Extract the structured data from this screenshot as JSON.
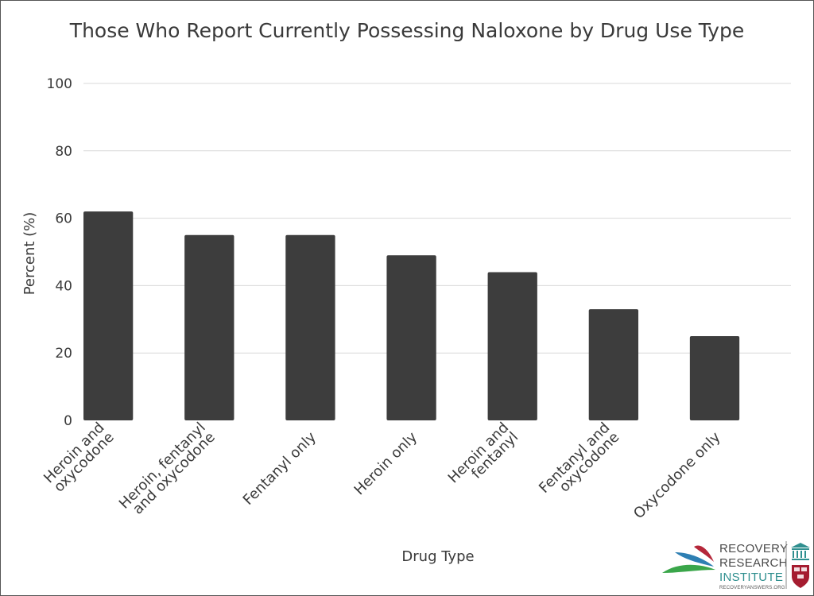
{
  "chart_data": {
    "type": "bar",
    "title": "Those Who Report Currently Possessing Naloxone by Drug Use Type",
    "xlabel": "Drug Type",
    "ylabel": "Percent (%)",
    "ylim": [
      0,
      100
    ],
    "yticks": [
      "0",
      "20",
      "40",
      "60",
      "80",
      "100"
    ],
    "grid": true,
    "categories": [
      [
        "Heroin and",
        "oxycodone"
      ],
      [
        "Heroin, fentanyl",
        "and oxycodone"
      ],
      [
        "Fentanyl only"
      ],
      [
        "Heroin only"
      ],
      [
        "Heroin and",
        "fentanyl"
      ],
      [
        "Fentanyl and",
        "oxycodone"
      ],
      [
        "Oxycodone only"
      ]
    ],
    "values": [
      62,
      55,
      55,
      49,
      44,
      33,
      25
    ],
    "bar_color": "#3d3d3d"
  },
  "logo": {
    "line1": "RECOVERY",
    "line2": "RESEARCH",
    "line3": "INSTITUTE",
    "url": "RECOVERYANSWERS.ORG",
    "colors": {
      "red": "#b5273a",
      "blue": "#2e7fb3",
      "green": "#3aa64a",
      "teal": "#2f8f8f"
    }
  }
}
